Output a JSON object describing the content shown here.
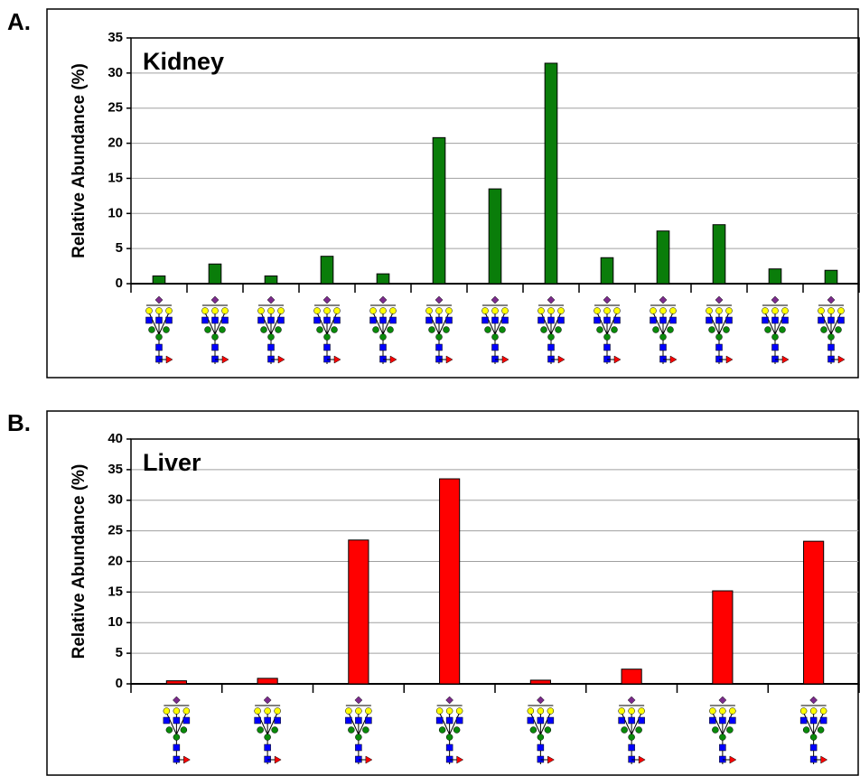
{
  "chart_data": [
    {
      "type": "bar",
      "panel": "A.",
      "title": "Kidney",
      "y_label": "Relative Abundance (%)",
      "categories": [
        null,
        null,
        null,
        null,
        null,
        null,
        null,
        null,
        null,
        null,
        null,
        null,
        null
      ],
      "values": [
        1.1,
        2.8,
        1.1,
        3.9,
        1.4,
        20.8,
        13.5,
        31.4,
        3.7,
        7.5,
        8.4,
        2.1,
        1.9
      ],
      "color": "#0a7d0a",
      "ylim": [
        0,
        35
      ],
      "yticks": [
        0,
        5,
        10,
        15,
        20,
        25,
        30,
        35
      ],
      "grid": true
    },
    {
      "type": "bar",
      "panel": "B.",
      "title": "Liver",
      "y_label": "Relative Abundance (%)",
      "categories": [
        null,
        null,
        null,
        null,
        null,
        null,
        null,
        null
      ],
      "values": [
        0.5,
        0.9,
        23.5,
        33.5,
        0.6,
        2.4,
        15.2,
        23.3
      ],
      "color": "#ff0000",
      "ylim": [
        0,
        40
      ],
      "yticks": [
        0,
        5,
        10,
        15,
        20,
        25,
        30,
        35,
        40
      ],
      "grid": true
    }
  ]
}
